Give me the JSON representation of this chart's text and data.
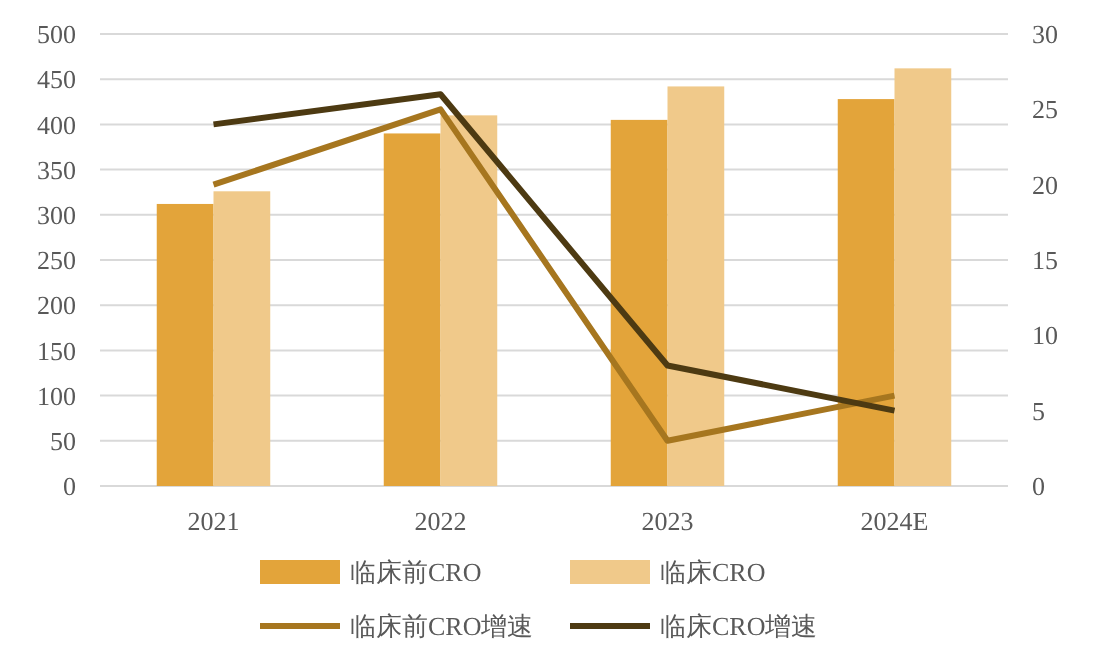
{
  "chart_data": {
    "type": "bar",
    "categories": [
      "2021",
      "2022",
      "2023",
      "2024E"
    ],
    "series": [
      {
        "name": "临床前CRO",
        "color": "#e3a43a",
        "values": [
          312,
          390,
          405,
          428
        ]
      },
      {
        "name": "临床CRO",
        "color": "#f0c98a",
        "values": [
          326,
          410,
          442,
          462
        ]
      },
      {
        "name": "临床前CRO增速",
        "type": "line",
        "axis": "y2",
        "color": "#a6761f",
        "values": [
          20,
          25,
          3,
          6
        ]
      },
      {
        "name": "临床CRO增速",
        "type": "line",
        "axis": "y2",
        "color": "#4d3a12",
        "values": [
          24,
          26,
          8,
          5
        ]
      }
    ],
    "ylim": [
      0,
      500
    ],
    "yticks": [
      0,
      50,
      100,
      150,
      200,
      250,
      300,
      350,
      400,
      450,
      500
    ],
    "y2lim": [
      0,
      30
    ],
    "y2ticks": [
      0,
      5,
      10,
      15,
      20,
      25,
      30
    ],
    "grid": "y",
    "legend": "bottom",
    "marker": "none",
    "line_style": "solid"
  }
}
